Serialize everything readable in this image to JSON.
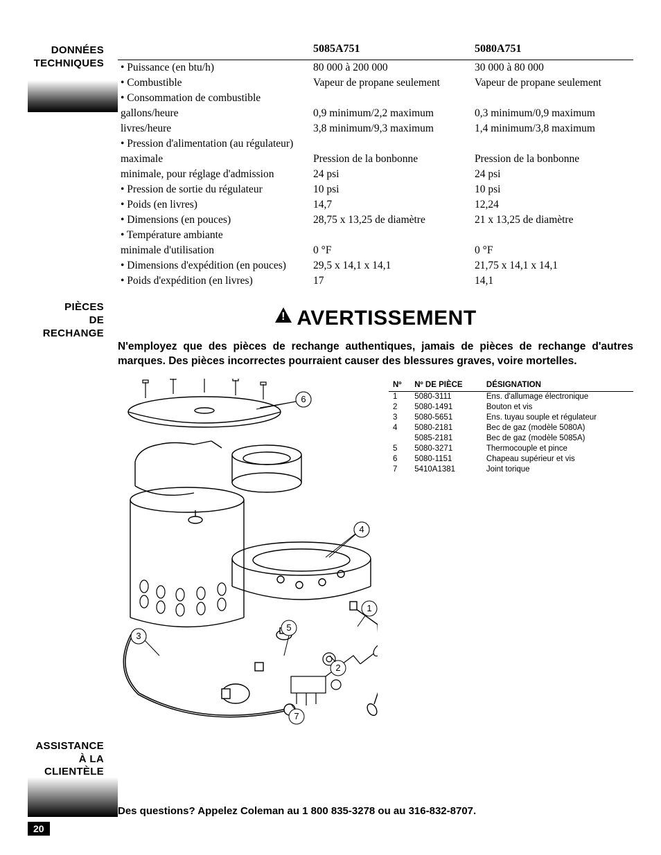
{
  "sidebar": {
    "donnees": "DONNÉES\nTECHNIQUES",
    "pieces": "PIÈCES\nDE\nRECHANGE",
    "assistance": "ASSISTANCE\nÀ LA\nCLIENTÈLE"
  },
  "spec": {
    "headers": {
      "empty": "",
      "col1": "5085A751",
      "col2": "5080A751"
    },
    "rows": [
      {
        "label": "• Puissance (en btu/h)",
        "c1": "80 000 à 200 000",
        "c2": "30 000 à 80 000"
      },
      {
        "label": "• Combustible",
        "c1": "Vapeur de propane seulement",
        "c2": "Vapeur de propane seulement"
      },
      {
        "label": "• Consommation de combustible",
        "c1": "",
        "c2": ""
      },
      {
        "label": "gallons/heure",
        "indent": true,
        "c1": "0,9 minimum/2,2 maximum",
        "c2": "0,3 minimum/0,9 maximum"
      },
      {
        "label": "livres/heure",
        "indent": true,
        "c1": "3,8 minimum/9,3 maximum",
        "c2": "1,4 minimum/3,8 maximum"
      },
      {
        "label": "• Pression d'alimentation (au régulateur)",
        "c1": "",
        "c2": ""
      },
      {
        "label": "maximale",
        "indent": true,
        "c1": "Pression de la bonbonne",
        "c2": "Pression de la bonbonne"
      },
      {
        "label": "minimale, pour réglage d'admission",
        "indent": true,
        "c1": "24 psi",
        "c2": "24 psi"
      },
      {
        "label": "• Pression de sortie du régulateur",
        "c1": "10 psi",
        "c2": "10 psi"
      },
      {
        "label": "• Poids (en livres)",
        "c1": "14,7",
        "c2": "12,24"
      },
      {
        "label": "• Dimensions (en pouces)",
        "c1": "28,75 x 13,25 de diamètre",
        "c2": "21 x 13,25 de diamètre"
      },
      {
        "label": "• Température ambiante",
        "c1": "",
        "c2": ""
      },
      {
        "label": "minimale d'utilisation",
        "indent": true,
        "c1": "0 °F",
        "c2": "0 °F"
      },
      {
        "label": "• Dimensions d'expédition (en pouces)",
        "c1": "29,5 x 14,1 x 14,1",
        "c2": "21,75 x 14,1 x 14,1"
      },
      {
        "label": "• Poids d'expédition (en livres)",
        "c1": "17",
        "c2": "14,1"
      }
    ]
  },
  "warning": {
    "title": "AVERTISSEMENT",
    "body": "N'employez que des pièces de rechange authentiques, jamais de pièces de rechange d'autres marques. Des pièces incorrectes pourraient causer des blessures graves, voire mortelles."
  },
  "parts": {
    "headers": {
      "no": "Nº",
      "piece": "Nº DE PIÈCE",
      "desig": "DÉSIGNATION"
    },
    "rows": [
      {
        "no": "1",
        "piece": "5080-3111",
        "desig": "Ens. d'allumage électronique"
      },
      {
        "no": "2",
        "piece": "5080-1491",
        "desig": "Bouton et vis"
      },
      {
        "no": "3",
        "piece": "5080-5651",
        "desig": "Ens. tuyau souple et régulateur"
      },
      {
        "no": "4",
        "piece": "5080-2181",
        "desig": "Bec de gaz (modèle 5080A)"
      },
      {
        "no": "",
        "piece": "5085-2181",
        "desig": "Bec de gaz (modèle 5085A)"
      },
      {
        "no": "5",
        "piece": "5080-3271",
        "desig": "Thermocouple et pince"
      },
      {
        "no": "6",
        "piece": "5080-1151",
        "desig": "Chapeau supérieur et vis"
      },
      {
        "no": "7",
        "piece": "5410A1381",
        "desig": "Joint torique"
      }
    ]
  },
  "assist": {
    "text": "Des questions? Appelez Coleman au 1 800 835-3278 ou au 316-832-8707."
  },
  "page_number": "20",
  "callouts": {
    "c1": "1",
    "c2": "2",
    "c3": "3",
    "c4": "4",
    "c5": "5",
    "c6": "6",
    "c7": "7"
  }
}
